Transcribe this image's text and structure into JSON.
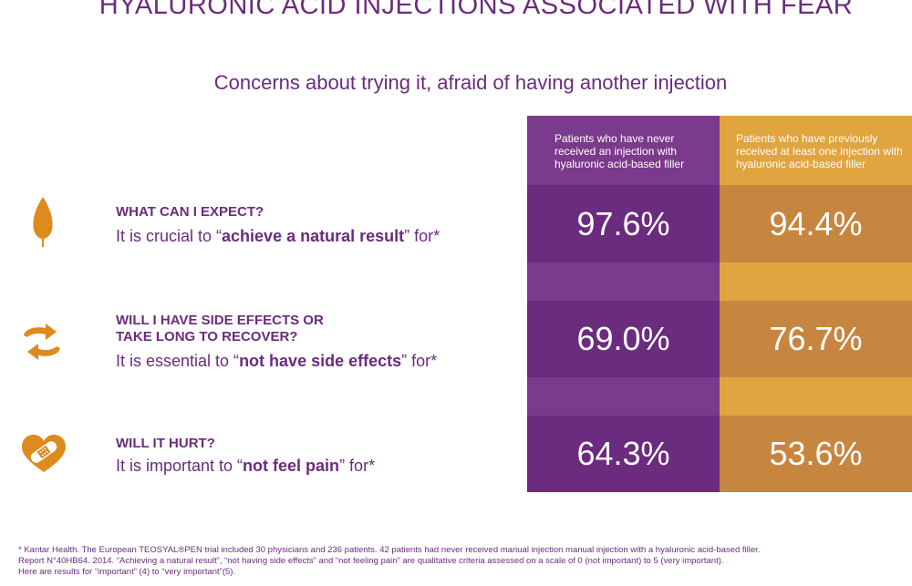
{
  "title": "HYALURONIC ACID INJECTIONS ASSOCIATED WITH FEAR",
  "subtitle": "Concerns about trying it, afraid of having another injection",
  "columns": {
    "never": "Patients who have never received an injection with hyaluronic acid-based filler",
    "previous": "Patients who have previously received at least one injection with hyaluronic acid-based filler"
  },
  "rows": [
    {
      "question": "WHAT CAN I EXPECT?",
      "statement_pre": "It is crucial to “",
      "statement_bold": "achieve a natural result",
      "statement_post": "” for*",
      "icon": "leaf-icon",
      "never": "97.6%",
      "previous": "94.4%"
    },
    {
      "question_line1": "WILL I HAVE SIDE EFFECTS OR",
      "question_line2": "TAKE LONG TO RECOVER?",
      "statement_pre": "It is essential to “",
      "statement_bold": "not have side effects",
      "statement_post": "” for*",
      "icon": "recycle-arrows-icon",
      "never": "69.0%",
      "previous": "76.7%"
    },
    {
      "question": "WILL IT HURT?",
      "statement_pre": "It is important to “",
      "statement_bold": "not feel pain",
      "statement_post": "” for*",
      "icon": "bandaged-heart-icon",
      "never": "64.3%",
      "previous": "53.6%"
    }
  ],
  "footnote": {
    "line1": "* Kantar Health. The European TEOSYAL®PEN trial included 30 physicians and 236 patients. 42 patients had never received manual injection manual injection with a hyaluronic acid-based filler.",
    "line2": "Report N°40HB64. 2014. “Achieving a natural result”, “not having side effects” and “not feeling pain” are qualitative criteria assessed on a scale of 0 (not important) to 5 (very important).",
    "line3": "Here are results for “important” (4) to “very important”(5)."
  },
  "colors": {
    "purple": "#6b2b7e",
    "purple_light": "#7b3a8c",
    "gold": "#e0a53f",
    "gold_dark": "#c7863f",
    "icon_orange": "#dd8a1e"
  }
}
